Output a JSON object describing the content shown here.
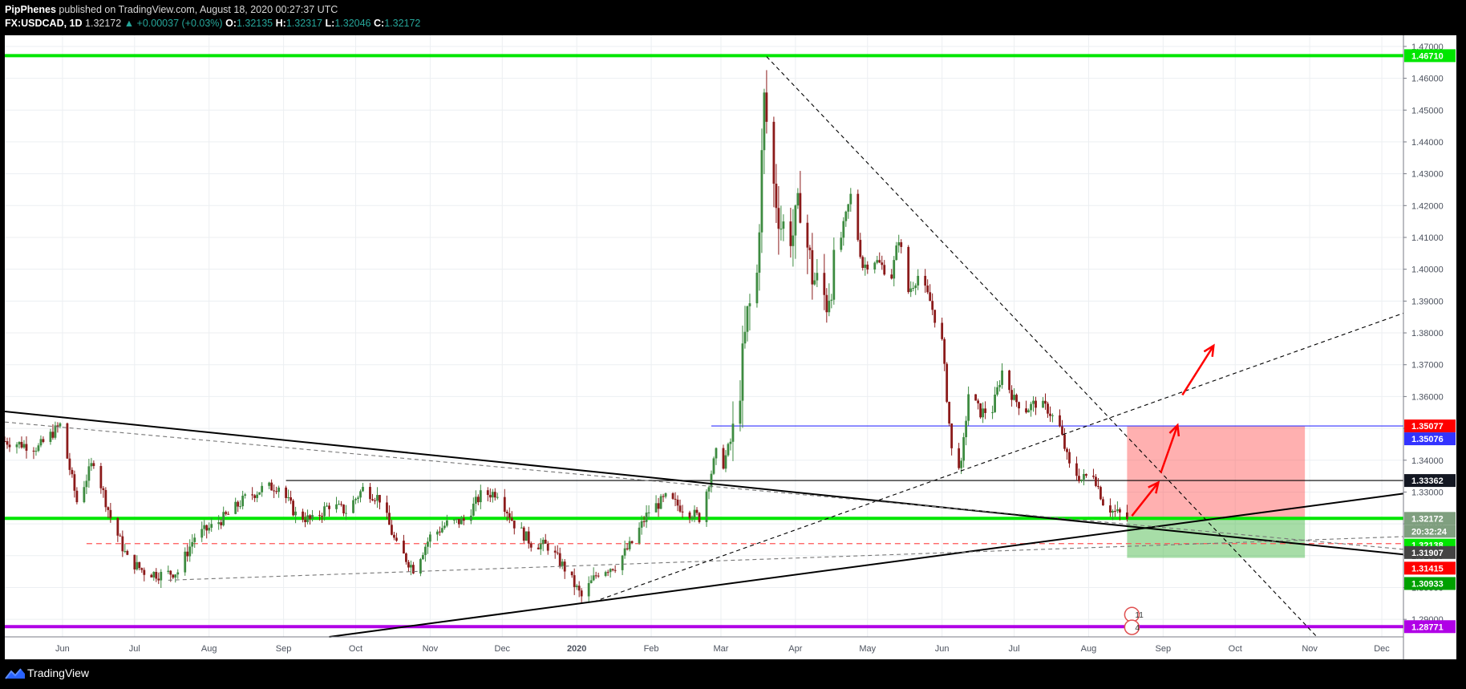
{
  "header": {
    "author": "PipPhenes",
    "published_text": " published on TradingView.com, August 18, 2020 00:27:37 UTC",
    "symbol": "FX:USDCAD, 1D",
    "last_price": "1.32172",
    "change_text": "▲ +0.00037 (+0.03%)",
    "o_label": "O:",
    "o_value": "1.32135",
    "h_label": "H:",
    "h_value": "1.32317",
    "l_label": "L:",
    "l_value": "1.32046",
    "c_label": "C:",
    "c_value": "1.32172"
  },
  "footer": {
    "brand": "TradingView"
  },
  "chart_data": {
    "type": "candlestick",
    "symbol": "FX:USDCAD",
    "interval": "1D",
    "price_axis": {
      "range": [
        1.2845,
        1.4735
      ],
      "ticks": [
        "1.29000",
        "1.30000",
        "1.31000",
        "1.32000",
        "1.33000",
        "1.34000",
        "1.35000",
        "1.36000",
        "1.37000",
        "1.38000",
        "1.39000",
        "1.40000",
        "1.41000",
        "1.42000",
        "1.43000",
        "1.44000",
        "1.45000",
        "1.46000",
        "1.47000"
      ]
    },
    "time_axis": {
      "range": [
        "2019-05-08",
        "2020-12-10"
      ],
      "labels": [
        {
          "text": "Jun",
          "date": "2019-06-01",
          "bold": false
        },
        {
          "text": "Jul",
          "date": "2019-07-01",
          "bold": false
        },
        {
          "text": "Aug",
          "date": "2019-08-01",
          "bold": false
        },
        {
          "text": "Sep",
          "date": "2019-09-01",
          "bold": false
        },
        {
          "text": "Oct",
          "date": "2019-10-01",
          "bold": false
        },
        {
          "text": "Nov",
          "date": "2019-11-01",
          "bold": false
        },
        {
          "text": "Dec",
          "date": "2019-12-01",
          "bold": false
        },
        {
          "text": "2020",
          "date": "2020-01-01",
          "bold": true
        },
        {
          "text": "Feb",
          "date": "2020-02-01",
          "bold": false
        },
        {
          "text": "Mar",
          "date": "2020-03-01",
          "bold": false
        },
        {
          "text": "Apr",
          "date": "2020-04-01",
          "bold": false
        },
        {
          "text": "May",
          "date": "2020-05-01",
          "bold": false
        },
        {
          "text": "Jun",
          "date": "2020-06-01",
          "bold": false
        },
        {
          "text": "Jul",
          "date": "2020-07-01",
          "bold": false
        },
        {
          "text": "Aug",
          "date": "2020-08-01",
          "bold": false
        },
        {
          "text": "Sep",
          "date": "2020-09-01",
          "bold": false
        },
        {
          "text": "Oct",
          "date": "2020-10-01",
          "bold": false
        },
        {
          "text": "Nov",
          "date": "2020-11-01",
          "bold": false
        },
        {
          "text": "Dec",
          "date": "2020-12-01",
          "bold": false
        }
      ]
    },
    "close_path": [
      [
        "2019-05-08",
        1.346
      ],
      [
        "2019-05-22",
        1.344
      ],
      [
        "2019-05-31",
        1.351
      ],
      [
        "2019-06-07",
        1.327
      ],
      [
        "2019-06-14",
        1.34
      ],
      [
        "2019-06-21",
        1.322
      ],
      [
        "2019-06-28",
        1.309
      ],
      [
        "2019-07-05",
        1.305
      ],
      [
        "2019-07-12",
        1.304
      ],
      [
        "2019-07-19",
        1.305
      ],
      [
        "2019-07-26",
        1.316
      ],
      [
        "2019-08-02",
        1.319
      ],
      [
        "2019-08-09",
        1.323
      ],
      [
        "2019-08-16",
        1.328
      ],
      [
        "2019-08-23",
        1.331
      ],
      [
        "2019-08-30",
        1.332
      ],
      [
        "2019-09-06",
        1.323
      ],
      [
        "2019-09-13",
        1.321
      ],
      [
        "2019-09-20",
        1.326
      ],
      [
        "2019-09-27",
        1.324
      ],
      [
        "2019-10-04",
        1.331
      ],
      [
        "2019-10-11",
        1.328
      ],
      [
        "2019-10-18",
        1.313
      ],
      [
        "2019-10-25",
        1.306
      ],
      [
        "2019-11-01",
        1.316
      ],
      [
        "2019-11-08",
        1.32
      ],
      [
        "2019-11-15",
        1.321
      ],
      [
        "2019-11-22",
        1.329
      ],
      [
        "2019-11-29",
        1.33
      ],
      [
        "2019-12-06",
        1.32
      ],
      [
        "2019-12-13",
        1.314
      ],
      [
        "2019-12-20",
        1.313
      ],
      [
        "2019-12-27",
        1.306
      ],
      [
        "2020-01-03",
        1.297
      ],
      [
        "2020-01-10",
        1.305
      ],
      [
        "2020-01-17",
        1.307
      ],
      [
        "2020-01-24",
        1.314
      ],
      [
        "2020-01-31",
        1.324
      ],
      [
        "2020-02-07",
        1.328
      ],
      [
        "2020-02-14",
        1.325
      ],
      [
        "2020-02-21",
        1.322
      ],
      [
        "2020-02-28",
        1.342
      ],
      [
        "2020-03-02",
        1.339
      ],
      [
        "2020-03-06",
        1.348
      ],
      [
        "2020-03-09",
        1.364
      ],
      [
        "2020-03-12",
        1.385
      ],
      [
        "2020-03-16",
        1.398
      ],
      [
        "2020-03-19",
        1.453
      ],
      [
        "2020-03-23",
        1.426
      ],
      [
        "2020-03-26",
        1.414
      ],
      [
        "2020-03-31",
        1.411
      ],
      [
        "2020-04-03",
        1.421
      ],
      [
        "2020-04-08",
        1.398
      ],
      [
        "2020-04-14",
        1.39
      ],
      [
        "2020-04-20",
        1.41
      ],
      [
        "2020-04-24",
        1.423
      ],
      [
        "2020-04-29",
        1.401
      ],
      [
        "2020-05-04",
        1.403
      ],
      [
        "2020-05-11",
        1.398
      ],
      [
        "2020-05-14",
        1.41
      ],
      [
        "2020-05-18",
        1.393
      ],
      [
        "2020-05-22",
        1.398
      ],
      [
        "2020-05-27",
        1.39
      ],
      [
        "2020-06-01",
        1.377
      ],
      [
        "2020-06-05",
        1.343
      ],
      [
        "2020-06-09",
        1.338
      ],
      [
        "2020-06-12",
        1.361
      ],
      [
        "2020-06-17",
        1.355
      ],
      [
        "2020-06-22",
        1.356
      ],
      [
        "2020-06-26",
        1.368
      ],
      [
        "2020-07-01",
        1.359
      ],
      [
        "2020-07-06",
        1.356
      ],
      [
        "2020-07-10",
        1.358
      ],
      [
        "2020-07-15",
        1.356
      ],
      [
        "2020-07-20",
        1.35
      ],
      [
        "2020-07-24",
        1.338
      ],
      [
        "2020-07-29",
        1.334
      ],
      [
        "2020-08-03",
        1.336
      ],
      [
        "2020-08-07",
        1.327
      ],
      [
        "2020-08-11",
        1.324
      ],
      [
        "2020-08-14",
        1.323
      ],
      [
        "2020-08-17",
        1.3217
      ]
    ],
    "horizontal_levels": [
      {
        "name": "top",
        "price": 1.4671,
        "color": "#00e600"
      },
      {
        "name": "support",
        "price": 1.32172,
        "color": "#00e600"
      },
      {
        "name": "bottom",
        "price": 1.28771,
        "color": "#b000e6"
      },
      {
        "name": "range-high",
        "price": 1.33362,
        "color": "#000000",
        "from": "2019-09-02",
        "to": "2020-12-10"
      },
      {
        "name": "blue-level",
        "price": 1.35076,
        "color": "#3333ff",
        "from": "2020-02-26",
        "to": "2020-12-10"
      },
      {
        "name": "dashed-red",
        "price": 1.3138,
        "color": "#ff5555",
        "dashed": true,
        "from": "2019-06-11",
        "to": "2020-12-10"
      }
    ],
    "trend_lines": [
      {
        "name": "descending-thick",
        "from": [
          "2019-05-08",
          1.3553
        ],
        "to": [
          "2020-12-10",
          1.3104
        ],
        "color": "#000000",
        "width": 2
      },
      {
        "name": "ascending-thick",
        "from": [
          "2019-09-20",
          1.2845
        ],
        "to": [
          "2020-12-10",
          1.3295
        ],
        "color": "#000000",
        "width": 2
      },
      {
        "name": "steep-dashed",
        "from": [
          "2020-03-20",
          1.4668
        ],
        "to": [
          "2020-11-04",
          1.2845
        ],
        "color": "#000000",
        "dashed": true
      },
      {
        "name": "rising-dashed",
        "from": [
          "2020-01-08",
          1.2955
        ],
        "to": [
          "2020-12-10",
          1.3862
        ],
        "color": "#000000",
        "dashed": true
      },
      {
        "name": "grey-dashed-1",
        "from": [
          "2019-05-08",
          1.352
        ],
        "to": [
          "2020-12-10",
          1.312
        ],
        "color": "#777777",
        "dashed": true
      },
      {
        "name": "grey-dashed-2",
        "from": [
          "2019-07-15",
          1.3023
        ],
        "to": [
          "2020-12-10",
          1.316
        ],
        "color": "#777777",
        "dashed": true
      }
    ],
    "position_tool": {
      "entry": 1.32172,
      "target": 1.35077,
      "stop": 1.30933,
      "from": "2020-08-17",
      "to": "2020-10-30"
    },
    "forecast_arrows": [
      {
        "from": [
          "2020-08-19",
          1.3225
        ],
        "to": [
          "2020-08-30",
          1.333
        ]
      },
      {
        "from": [
          "2020-08-31",
          1.336
        ],
        "to": [
          "2020-09-07",
          1.351
        ]
      },
      {
        "from": [
          "2020-09-09",
          1.3605
        ],
        "to": [
          "2020-09-22",
          1.376
        ]
      }
    ],
    "price_tags": [
      {
        "text": "1.46710",
        "price": 1.4671,
        "bg": "#00e600",
        "fg": "#000000"
      },
      {
        "text": "1.35077",
        "price": 1.35077,
        "bg": "#ff0000",
        "fg": "#ffffff"
      },
      {
        "text": "1.35076",
        "price": 1.35076,
        "bg": "#3333ff",
        "fg": "#ffffff",
        "offset": 1
      },
      {
        "text": "1.33362",
        "price": 1.33362,
        "bg": "#131722",
        "fg": "#ffffff"
      },
      {
        "text": "1.32172",
        "price": 1.32172,
        "bg": "#7f9f7f",
        "fg": "#ffffff"
      },
      {
        "text": "20:32:24",
        "price": 1.32172,
        "bg": "#7f9f7f",
        "fg": "#ffffff",
        "offset": 1
      },
      {
        "text": "1.32138",
        "price": 1.32138,
        "bg": "#00e600",
        "fg": "#000000",
        "offset": 2
      },
      {
        "text": "1.31907",
        "price": 1.31907,
        "bg": "#444444",
        "fg": "#ffffff",
        "offset": 2
      },
      {
        "text": "1.31415",
        "price": 1.31415,
        "bg": "#ff0000",
        "fg": "#ffffff",
        "offset": 2
      },
      {
        "text": "1.30933",
        "price": 1.30933,
        "bg": "#00a000",
        "fg": "#ffffff",
        "offset": 2
      },
      {
        "text": "1.28771",
        "price": 1.28771,
        "bg": "#b000e6",
        "fg": "#ffffff"
      }
    ],
    "event_markers": [
      {
        "text": "11",
        "date": "2020-08-19",
        "price": 1.2915
      },
      {
        "text": "4",
        "date": "2020-08-19",
        "price": 1.2875
      }
    ]
  }
}
